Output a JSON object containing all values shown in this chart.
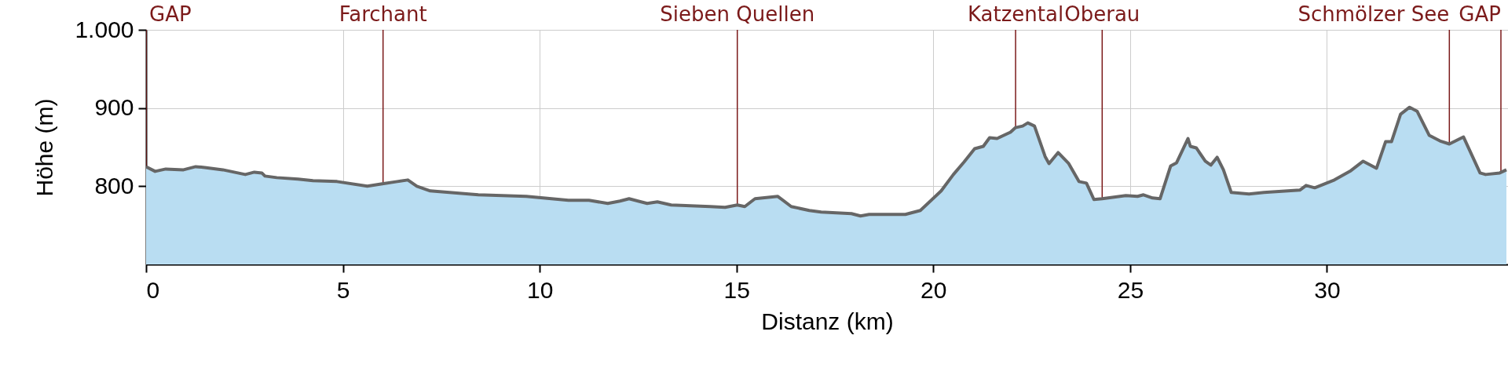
{
  "chart_data": {
    "type": "area",
    "xlabel": "Distanz (km)",
    "ylabel": "Höhe (m)",
    "xlim": [
      0,
      34.6
    ],
    "xticks": [
      0,
      5,
      10,
      15,
      20,
      25,
      30
    ],
    "ylim": [
      700,
      1000
    ],
    "yticks": [
      800,
      900,
      {
        "value": 1000,
        "label": "1.000"
      }
    ],
    "grid": true,
    "series": [
      {
        "color": "#b9ddf2",
        "x": [
          0,
          0.23,
          0.5,
          0.95,
          1.26,
          1.49,
          1.95,
          2.52,
          2.75,
          2.94,
          3.02,
          3.32,
          3.86,
          4.24,
          4.85,
          5.62,
          6.0,
          6.38,
          6.65,
          6.88,
          7.22,
          8.44,
          9.66,
          10.73,
          11.25,
          11.73,
          12.04,
          12.27,
          12.73,
          12.99,
          13.34,
          14.33,
          14.71,
          15.02,
          15.21,
          15.47,
          16.05,
          16.39,
          16.85,
          17.15,
          17.92,
          18.15,
          18.37,
          19.29,
          19.67,
          20.2,
          20.51,
          20.78,
          21.05,
          21.27,
          21.43,
          21.62,
          21.96,
          22.09,
          22.27,
          22.4,
          22.57,
          22.84,
          22.94,
          23.17,
          23.44,
          23.7,
          23.89,
          24.08,
          24.29,
          24.89,
          25.19,
          25.34,
          25.57,
          25.76,
          26.03,
          26.18,
          26.47,
          26.53,
          26.68,
          26.91,
          27.05,
          27.21,
          27.37,
          27.57,
          28.02,
          28.4,
          29.31,
          29.47,
          29.69,
          30.19,
          30.61,
          30.92,
          31.26,
          31.49,
          31.64,
          31.87,
          32.1,
          32.29,
          32.6,
          32.87,
          33.11,
          33.47,
          33.89,
          34.03,
          34.39,
          34.56
        ],
        "values": [
          825,
          819,
          822,
          821,
          825,
          824,
          821,
          815,
          818,
          817,
          813,
          811,
          809,
          807,
          806,
          800,
          803,
          806,
          808,
          800,
          794,
          789,
          787,
          782,
          782,
          778,
          781,
          784,
          778,
          780,
          776,
          774,
          773,
          776,
          774,
          784,
          787,
          774,
          769,
          767,
          765,
          762,
          764,
          764,
          769,
          794,
          815,
          831,
          848,
          851,
          862,
          861,
          869,
          875,
          877,
          881,
          877,
          838,
          829,
          843,
          829,
          806,
          804,
          783,
          784,
          788,
          787,
          789,
          785,
          784,
          826,
          830,
          861,
          851,
          849,
          832,
          827,
          837,
          821,
          792,
          790,
          792,
          795,
          801,
          798,
          808,
          820,
          832,
          823,
          857,
          857,
          892,
          901,
          896,
          865,
          858,
          854,
          863,
          817,
          815,
          817,
          821
        ]
      }
    ],
    "ref_lines": [
      {
        "axis": "x",
        "value": 0,
        "label": "GAP",
        "color": "#7b1a1a"
      },
      {
        "axis": "x",
        "value": 6.02,
        "label": "Farchant",
        "color": "#7b1a1a"
      },
      {
        "axis": "x",
        "value": 15.02,
        "label": "Sieben Quellen",
        "color": "#7b1a1a"
      },
      {
        "axis": "x",
        "value": 22.09,
        "label": "Katzental",
        "color": "#7b1a1a"
      },
      {
        "axis": "x",
        "value": 24.29,
        "label": "Oberau",
        "color": "#7b1a1a"
      },
      {
        "axis": "x",
        "value": 33.11,
        "label": "Schmölzer See",
        "color": "#7b1a1a"
      },
      {
        "axis": "x",
        "value": 34.42,
        "label": "GAP",
        "color": "#7b1a1a"
      }
    ]
  }
}
